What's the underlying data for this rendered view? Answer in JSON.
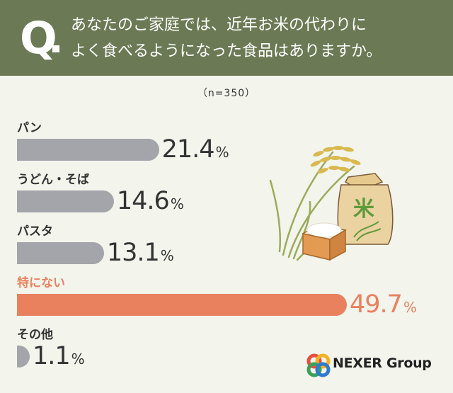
{
  "header": {
    "q_mark": "Q",
    "question_line1": "あなたのご家庭では、近年お米の代わりに",
    "question_line2": "よく食べるようになった食品はありますか。"
  },
  "sample": "（n=350）",
  "chart_data": {
    "type": "bar",
    "orientation": "horizontal",
    "categories": [
      "パン",
      "うどん・そば",
      "パスタ",
      "特にない",
      "その他"
    ],
    "values": [
      21.4,
      14.6,
      13.1,
      49.7,
      1.1
    ],
    "value_labels": [
      "21.4",
      "14.6",
      "13.1",
      "49.7",
      "1.1"
    ],
    "unit": "%",
    "highlight_index": 3,
    "bar_color": "#a4a5aa",
    "highlight_color": "#e9805e",
    "label_color": "#333333",
    "xlim": [
      0,
      49.7
    ]
  },
  "illustration": {
    "sack_label": "米"
  },
  "logo": {
    "text": "NEXER Group"
  }
}
